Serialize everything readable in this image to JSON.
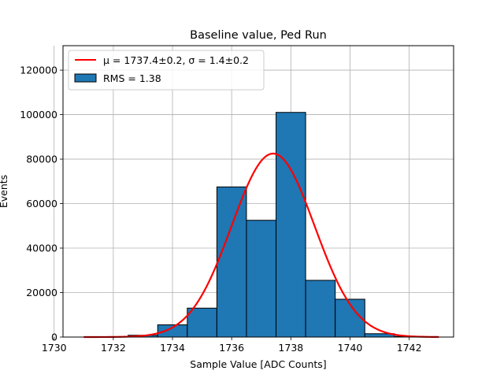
{
  "chart_data": {
    "type": "bar",
    "title": "Baseline value, Ped Run",
    "xlabel": "Sample Value [ADC Counts]",
    "ylabel": "Events",
    "xlim": [
      1730.3,
      1743.5
    ],
    "ylim": [
      0,
      131000
    ],
    "xticks": [
      1730,
      1732,
      1734,
      1736,
      1738,
      1740,
      1742
    ],
    "yticks": [
      0,
      20000,
      40000,
      60000,
      80000,
      100000,
      120000
    ],
    "grid": true,
    "legend_position": "top-left",
    "colors": {
      "bars": "#1f77b4",
      "bar_edge": "#000000",
      "fit": "#ff0000",
      "grid": "#b0b0b0"
    },
    "histogram": {
      "name": "RMS = 1.38",
      "bins": [
        {
          "x0": 1730.5,
          "x1": 1731.5,
          "value": 0
        },
        {
          "x0": 1731.5,
          "x1": 1732.5,
          "value": 0
        },
        {
          "x0": 1732.5,
          "x1": 1733.5,
          "value": 800
        },
        {
          "x0": 1733.5,
          "x1": 1734.5,
          "value": 5500
        },
        {
          "x0": 1734.5,
          "x1": 1735.5,
          "value": 13000
        },
        {
          "x0": 1735.5,
          "x1": 1736.5,
          "value": 67500
        },
        {
          "x0": 1736.5,
          "x1": 1737.5,
          "value": 52500
        },
        {
          "x0": 1737.5,
          "x1": 1738.5,
          "value": 101000
        },
        {
          "x0": 1738.5,
          "x1": 1739.5,
          "value": 25500
        },
        {
          "x0": 1739.5,
          "x1": 1740.5,
          "value": 17000
        },
        {
          "x0": 1740.5,
          "x1": 1741.5,
          "value": 1500
        },
        {
          "x0": 1741.5,
          "x1": 1742.5,
          "value": 300
        }
      ]
    },
    "fit": {
      "name": "μ = 1737.4±0.2, σ = 1.4±0.2",
      "type": "gaussian",
      "mu": 1737.4,
      "sigma": 1.4,
      "amplitude": 82500,
      "x_range": [
        1731.0,
        1743.0
      ]
    }
  }
}
